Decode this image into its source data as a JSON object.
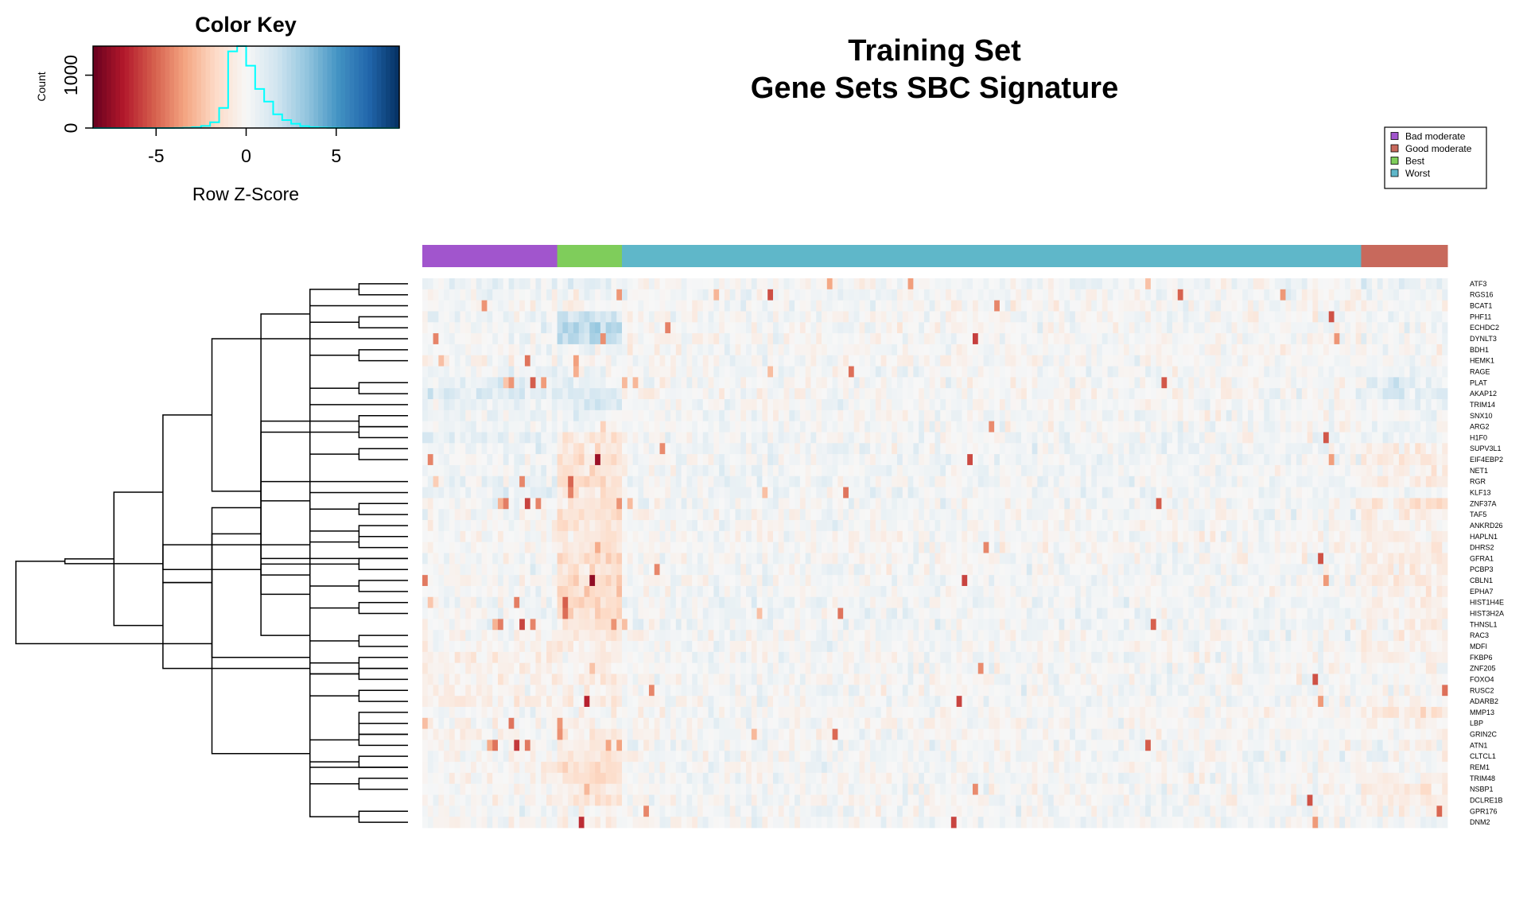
{
  "chart_data": {
    "type": "heatmap",
    "title_lines": [
      "Training Set",
      "Gene Sets SBC Signature"
    ],
    "color_key": {
      "title": "Color Key",
      "xlabel": "Row Z-Score",
      "ylabel": "Count",
      "x_ticks": [
        -5,
        0,
        5
      ],
      "y_ticks": [
        0,
        1000
      ],
      "xlim": [
        -8.5,
        8.5
      ],
      "ylim": [
        0,
        1550
      ],
      "palette": [
        "#67001f",
        "#b2182b",
        "#d6604d",
        "#f4a582",
        "#fddbc7",
        "#f7f7f7",
        "#d1e5f0",
        "#92c5de",
        "#4393c3",
        "#2166ac",
        "#053061"
      ],
      "histogram_color": "#00ffff",
      "histogram": {
        "bin_centers": [
          -8.25,
          -7.75,
          -7.25,
          -6.75,
          -6.25,
          -5.75,
          -5.25,
          -4.75,
          -4.25,
          -3.75,
          -3.25,
          -2.75,
          -2.25,
          -1.75,
          -1.25,
          -0.75,
          -0.25,
          0.25,
          0.75,
          1.25,
          1.75,
          2.25,
          2.75,
          3.25,
          3.75,
          4.25,
          4.75,
          5.25,
          5.75,
          6.25,
          6.75,
          7.25,
          7.75,
          8.25
        ],
        "counts": [
          0,
          0,
          0,
          0,
          0,
          0,
          0,
          0,
          0,
          2,
          5,
          15,
          40,
          110,
          380,
          1450,
          1550,
          1180,
          740,
          500,
          260,
          150,
          80,
          35,
          15,
          7,
          3,
          1,
          0,
          0,
          0,
          0,
          0,
          0
        ]
      }
    },
    "legend": {
      "placement": "top-right",
      "entries": [
        {
          "label": "Bad moderate",
          "color": "#a155cd"
        },
        {
          "label": "Good moderate",
          "color": "#c8695c"
        },
        {
          "label": "Best",
          "color": "#7fcd5b"
        },
        {
          "label": "Worst",
          "color": "#5fb7c9"
        }
      ]
    },
    "column_groups": [
      {
        "group": "Bad moderate",
        "columns": 25
      },
      {
        "group": "Best",
        "columns": 12
      },
      {
        "group": "Worst",
        "columns": 137
      },
      {
        "group": "Good moderate",
        "columns": 16
      }
    ],
    "genes": [
      "ATF3",
      "RGS16",
      "BCAT1",
      "PHF11",
      "ECHDC2",
      "DYNLT3",
      "BDH1",
      "HEMK1",
      "RAGE",
      "PLAT",
      "AKAP12",
      "TRIM14",
      "SNX10",
      "ARG2",
      "H1F0",
      "SUPV3L1",
      "EIF4EBP2",
      "NET1",
      "RGR",
      "KLF13",
      "ZNF37A",
      "TAF5",
      "ANKRD26",
      "HAPLN1",
      "DHRS2",
      "GFRA1",
      "PCBP3",
      "CBLN1",
      "EPHA7",
      "HIST1H4E",
      "HIST3H2A",
      "THNSL1",
      "RAC3",
      "MDFI",
      "FKBP6",
      "ZNF205",
      "FOXO4",
      "RUSC2",
      "ADARB2",
      "MMP13",
      "LBP",
      "GRIN2C",
      "ATN1",
      "CLTCL1",
      "REM1",
      "TRIM48",
      "NSBP1",
      "DCLRE1B",
      "GPR176",
      "DNM2"
    ],
    "group_bias": [
      [
        0.3,
        0.5,
        0.1,
        0.5
      ],
      [
        0.2,
        0.2,
        0.1,
        0.2
      ],
      [
        0.1,
        -0.1,
        0.0,
        -0.1
      ],
      [
        0.2,
        1.5,
        0.1,
        0.2
      ],
      [
        0.1,
        1.8,
        0.0,
        0.0
      ],
      [
        0.2,
        1.8,
        0.0,
        0.2
      ],
      [
        0.0,
        0.3,
        0.0,
        0.0
      ],
      [
        -0.1,
        0.0,
        0.0,
        0.1
      ],
      [
        0.3,
        0.2,
        0.1,
        0.3
      ],
      [
        0.6,
        0.4,
        0.0,
        0.7
      ],
      [
        0.9,
        0.9,
        0.0,
        0.6
      ],
      [
        0.4,
        1.1,
        0.1,
        0.3
      ],
      [
        0.3,
        0.5,
        0.1,
        0.2
      ],
      [
        0.3,
        0.2,
        0.1,
        0.2
      ],
      [
        0.5,
        -0.6,
        0.2,
        0.3
      ],
      [
        0.2,
        -1.0,
        0.2,
        -0.6
      ],
      [
        0.2,
        -1.0,
        0.2,
        -0.5
      ],
      [
        0.1,
        -0.9,
        0.2,
        -0.3
      ],
      [
        0.3,
        -1.2,
        0.2,
        -0.5
      ],
      [
        0.5,
        -0.8,
        0.2,
        0.2
      ],
      [
        0.1,
        -0.9,
        0.1,
        -0.9
      ],
      [
        0.1,
        -1.1,
        0.1,
        -0.6
      ],
      [
        0.0,
        -0.8,
        0.1,
        -0.3
      ],
      [
        0.0,
        -0.6,
        0.0,
        -0.3
      ],
      [
        0.0,
        -0.8,
        0.0,
        -0.5
      ],
      [
        0.0,
        -1.0,
        0.1,
        -0.6
      ],
      [
        0.0,
        -1.1,
        0.1,
        -0.6
      ],
      [
        0.0,
        -1.2,
        0.1,
        -0.5
      ],
      [
        0.0,
        -1.3,
        0.1,
        -0.3
      ],
      [
        0.1,
        -1.3,
        0.2,
        -0.3
      ],
      [
        0.1,
        -1.2,
        0.2,
        -0.3
      ],
      [
        0.1,
        -0.9,
        0.2,
        -0.3
      ],
      [
        0.0,
        -0.7,
        0.1,
        -0.5
      ],
      [
        -0.1,
        -0.4,
        0.1,
        -0.4
      ],
      [
        -0.4,
        -0.2,
        0.1,
        -0.2
      ],
      [
        -0.3,
        -0.2,
        0.1,
        -0.2
      ],
      [
        -0.3,
        -0.3,
        0.1,
        0.0
      ],
      [
        -0.4,
        -0.4,
        0.1,
        -0.2
      ],
      [
        -0.4,
        -0.4,
        0.1,
        -0.1
      ],
      [
        0.0,
        0.0,
        0.0,
        -0.8
      ],
      [
        -0.1,
        -0.2,
        0.0,
        -0.2
      ],
      [
        -0.2,
        -0.5,
        0.0,
        0.0
      ],
      [
        -0.1,
        -0.5,
        0.1,
        -0.1
      ],
      [
        0.0,
        -0.8,
        0.1,
        -0.1
      ],
      [
        -0.1,
        -1.2,
        0.1,
        -0.1
      ],
      [
        -0.1,
        -1.0,
        0.1,
        -0.2
      ],
      [
        0.0,
        -0.5,
        0.1,
        -0.8
      ],
      [
        -0.1,
        -0.6,
        0.1,
        -0.5
      ],
      [
        0.0,
        -0.2,
        0.1,
        -0.4
      ],
      [
        0.0,
        -0.2,
        0.1,
        0.3
      ]
    ],
    "dendrogram": {
      "merges": [
        [
          -10,
          -11
        ],
        [
          -46,
          -47
        ],
        [
          -45,
          -44
        ],
        [
          -29,
          -28
        ],
        [
          -1,
          -2
        ],
        [
          -21,
          -22
        ],
        [
          -17,
          -16
        ],
        [
          -4,
          -5
        ],
        [
          -7,
          -8
        ],
        [
          -49,
          -50
        ],
        [
          -23,
          -24
        ],
        [
          -24,
          -25
        ],
        [
          -30,
          -31
        ],
        [
          -38,
          -39
        ],
        [
          8,
          -3
        ],
        [
          5,
          1
        ],
        [
          3,
          9
        ],
        [
          -14,
          -15
        ],
        [
          6,
          -20
        ],
        [
          14,
          4
        ],
        [
          -36,
          -37
        ],
        [
          -33,
          -34
        ],
        [
          -42,
          -43
        ],
        [
          -26,
          -27
        ],
        [
          -35,
          -36
        ],
        [
          -41,
          -42
        ],
        [
          -13,
          -14
        ],
        [
          2,
          -12
        ],
        [
          16,
          -6
        ],
        [
          19,
          -19
        ],
        [
          10,
          7
        ],
        [
          17,
          15
        ],
        [
          27,
          28
        ],
        [
          12,
          13
        ],
        [
          30,
          29
        ],
        [
          -40,
          -41
        ],
        [
          22,
          21
        ],
        [
          23,
          -45
        ],
        [
          34,
          24
        ],
        [
          11,
          -26
        ],
        [
          25,
          21
        ],
        [
          37,
          33
        ],
        [
          39,
          35
        ],
        [
          41,
          42
        ],
        [
          42,
          40
        ],
        [
          43,
          44
        ],
        [
          18,
          31
        ],
        [
          46,
          45
        ],
        [
          47,
          38
        ],
        [
          49,
          48
        ]
      ],
      "heights": [
        1.0,
        1.0,
        1.0,
        1.0,
        1.0,
        1.0,
        1.0,
        1.0,
        1.0,
        1.0,
        1.0,
        1.0,
        1.0,
        1.0,
        1.0,
        1.0,
        1.0,
        1.0,
        1.0,
        1.0,
        1.0,
        1.0,
        1.0,
        1.0,
        1.0,
        1.0,
        1.0,
        1.0,
        1.0,
        1.0,
        1.0,
        1.0,
        1.0,
        1.0,
        1.0,
        1.0,
        1.0,
        1.0,
        1.0,
        1.0,
        1.0,
        1.0,
        1.0,
        1.0,
        1.0,
        1.0,
        1.0,
        1.0,
        1.0,
        1.0
      ]
    }
  }
}
